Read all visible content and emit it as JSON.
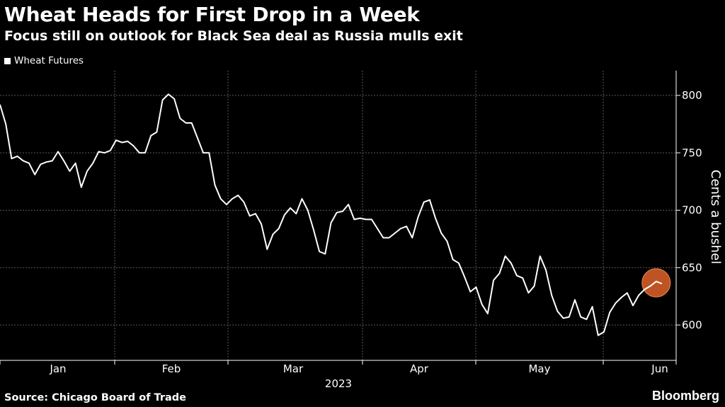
{
  "header": {
    "title": "Wheat Heads for First Drop in a Week",
    "subtitle": "Focus still on outlook for Black Sea deal as Russia mulls exit"
  },
  "legend": {
    "label": "Wheat Futures"
  },
  "footer": {
    "source": "Source: Chicago Board of Trade",
    "brand": "Bloomberg"
  },
  "colors": {
    "background": "#000000",
    "line": "#ffffff",
    "grid": "#5a5a5a",
    "highlight": "#e0622a"
  },
  "chart_data": {
    "type": "line",
    "title": "Wheat Heads for First Drop in a Week",
    "subtitle": "Focus still on outlook for Black Sea deal as Russia mulls exit",
    "ylabel": "Cents a bushel",
    "xlabel": "2023",
    "year_label": "2023",
    "ylim": [
      575,
      820
    ],
    "y_ticks": [
      600,
      650,
      700,
      750,
      800
    ],
    "x_ticks": [
      "Jan",
      "Feb",
      "Mar",
      "Apr",
      "May",
      "Jun"
    ],
    "grid": true,
    "legend_position": "top-left",
    "y_axis_side": "right",
    "highlight_last_point": true,
    "series": [
      {
        "name": "Wheat Futures",
        "values": [
          792,
          775,
          745,
          747,
          743,
          741,
          731,
          740,
          742,
          743,
          751,
          743,
          734,
          741,
          720,
          734,
          741,
          751,
          750,
          752,
          761,
          759,
          760,
          756,
          750,
          750,
          765,
          768,
          796,
          801,
          797,
          780,
          776,
          776,
          763,
          750,
          750,
          722,
          710,
          705,
          710,
          713,
          707,
          695,
          697,
          688,
          666,
          679,
          684,
          696,
          702,
          697,
          710,
          700,
          683,
          664,
          662,
          689,
          698,
          699,
          705,
          692,
          693,
          692,
          692,
          684,
          676,
          676,
          680,
          684,
          686,
          676,
          694,
          707,
          709,
          693,
          680,
          673,
          657,
          654,
          642,
          629,
          633,
          618,
          610,
          639,
          645,
          660,
          654,
          643,
          641,
          628,
          634,
          660,
          648,
          626,
          612,
          606,
          607,
          622,
          607,
          605,
          616,
          591,
          594,
          611,
          619,
          624,
          628,
          617,
          626,
          631,
          634,
          638,
          636
        ]
      }
    ]
  }
}
